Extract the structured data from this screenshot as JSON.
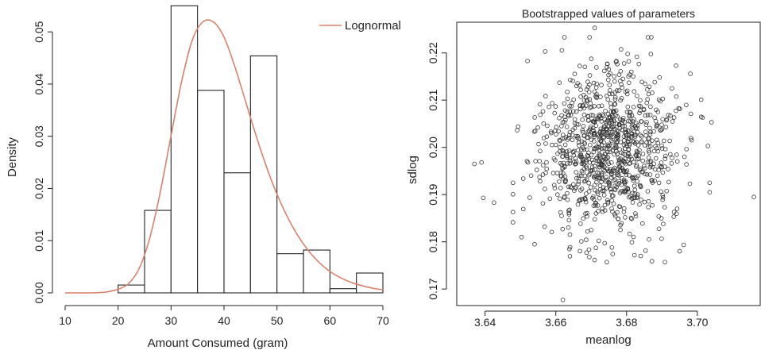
{
  "chart_data": [
    {
      "type": "bar",
      "subtype": "histogram",
      "title": "",
      "xlabel": "Amount Consumed (gram)",
      "ylabel": "Density",
      "xlim": [
        10,
        70
      ],
      "ylim": [
        0,
        0.052
      ],
      "x_ticks": [
        10,
        20,
        30,
        40,
        50,
        60,
        70
      ],
      "y_ticks": [
        0.0,
        0.01,
        0.02,
        0.03,
        0.04,
        0.05
      ],
      "y_tick_labels": [
        "0.00",
        "0.01",
        "0.02",
        "0.03",
        "0.04",
        "0.05"
      ],
      "bins": [
        {
          "start": 20,
          "end": 25,
          "density": 0.0015
        },
        {
          "start": 25,
          "end": 30,
          "density": 0.0158
        },
        {
          "start": 30,
          "end": 35,
          "density": 0.055
        },
        {
          "start": 35,
          "end": 40,
          "density": 0.0388
        },
        {
          "start": 40,
          "end": 45,
          "density": 0.023
        },
        {
          "start": 45,
          "end": 50,
          "density": 0.0454
        },
        {
          "start": 50,
          "end": 55,
          "density": 0.0075
        },
        {
          "start": 55,
          "end": 60,
          "density": 0.0082
        },
        {
          "start": 60,
          "end": 65,
          "density": 0.0008
        },
        {
          "start": 65,
          "end": 70,
          "density": 0.0038
        }
      ],
      "curve": {
        "name": "Lognormal",
        "color": "#d9826a",
        "x": [
          10,
          15,
          18,
          20,
          22,
          24,
          26,
          28,
          30,
          32,
          34,
          36,
          38,
          40,
          42,
          44,
          46,
          48,
          50,
          52,
          54,
          56,
          58,
          60,
          62,
          64,
          66,
          68,
          70
        ],
        "y": [
          0.0,
          0.0,
          0.0002,
          0.0007,
          0.0018,
          0.0047,
          0.0106,
          0.0195,
          0.0301,
          0.0405,
          0.0484,
          0.0519,
          0.0519,
          0.049,
          0.0435,
          0.0369,
          0.0303,
          0.0242,
          0.0189,
          0.0145,
          0.0109,
          0.008,
          0.0058,
          0.0041,
          0.0029,
          0.002,
          0.0014,
          0.0009,
          0.0006
        ]
      },
      "legend": {
        "position": "top-right",
        "entries": [
          "Lognormal"
        ]
      }
    },
    {
      "type": "scatter",
      "title": "Bootstrapped values of parameters",
      "xlabel": "meanlog",
      "ylabel": "sdlog",
      "xlim": [
        3.632,
        3.718
      ],
      "ylim": [
        0.1665,
        0.2265
      ],
      "x_ticks": [
        3.64,
        3.66,
        3.68,
        3.7
      ],
      "x_tick_labels": [
        "3.64",
        "3.66",
        "3.68",
        "3.70"
      ],
      "y_ticks": [
        0.17,
        0.18,
        0.19,
        0.2,
        0.21,
        0.22
      ],
      "y_tick_labels": [
        "0.17",
        "0.18",
        "0.19",
        "0.20",
        "0.21",
        "0.22"
      ],
      "point_style": "open-circle",
      "n_points_approx": 1000,
      "center": {
        "meanlog": 3.6745,
        "sdlog": 0.1995
      },
      "spread_sd": {
        "meanlog": 0.0095,
        "sdlog": 0.0085
      },
      "outliers": [
        {
          "x": 3.637,
          "y": 0.1965
        },
        {
          "x": 3.639,
          "y": 0.1968
        },
        {
          "x": 3.6395,
          "y": 0.1893
        },
        {
          "x": 3.6425,
          "y": 0.1883
        },
        {
          "x": 3.652,
          "y": 0.2183
        },
        {
          "x": 3.657,
          "y": 0.2203
        },
        {
          "x": 3.671,
          "y": 0.2253
        },
        {
          "x": 3.687,
          "y": 0.2233
        },
        {
          "x": 3.694,
          "y": 0.2173
        },
        {
          "x": 3.7015,
          "y": 0.2063
        },
        {
          "x": 3.704,
          "y": 0.2053
        },
        {
          "x": 3.703,
          "y": 0.2003
        },
        {
          "x": 3.7035,
          "y": 0.1925
        },
        {
          "x": 3.7035,
          "y": 0.1905
        },
        {
          "x": 3.716,
          "y": 0.1895
        },
        {
          "x": 3.695,
          "y": 0.178
        },
        {
          "x": 3.662,
          "y": 0.1677
        },
        {
          "x": 3.684,
          "y": 0.177
        },
        {
          "x": 3.654,
          "y": 0.1795
        }
      ]
    }
  ]
}
